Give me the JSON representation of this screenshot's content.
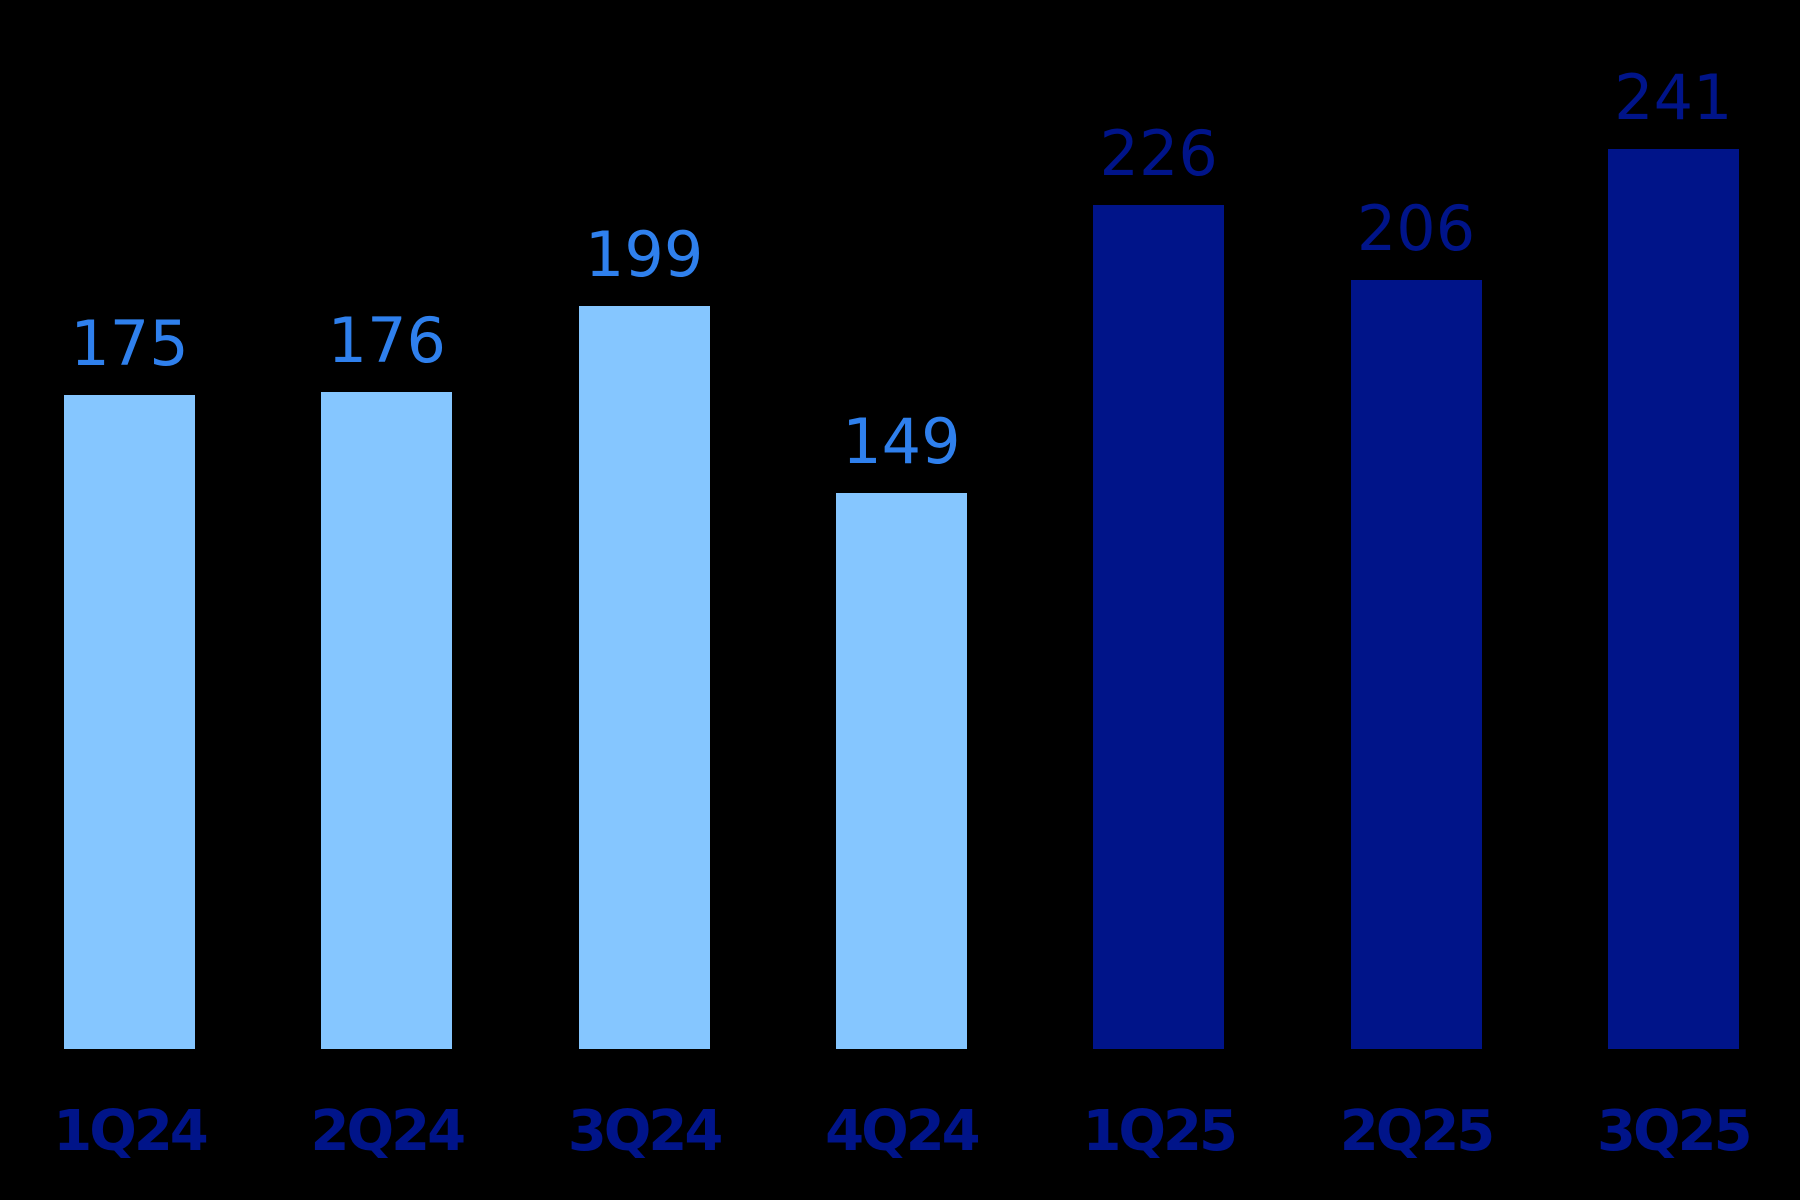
{
  "chart_data": {
    "type": "bar",
    "title": "",
    "xlabel": "",
    "ylabel": "",
    "categories": [
      "1Q24",
      "2Q24",
      "3Q24",
      "4Q24",
      "1Q25",
      "2Q25",
      "3Q25"
    ],
    "values": [
      175,
      176,
      199,
      149,
      226,
      206,
      241
    ],
    "ylim": [
      0,
      241
    ],
    "grid": false,
    "legend": null,
    "bar_colors": [
      "#85C6FF",
      "#85C6FF",
      "#85C6FF",
      "#85C6FF",
      "#001489",
      "#001489",
      "#001489"
    ],
    "label_colors": [
      "#2F80ED",
      "#2F80ED",
      "#2F80ED",
      "#2F80ED",
      "#001489",
      "#001489",
      "#001489"
    ]
  },
  "colors": {
    "background": "#000000",
    "bar_2024": "#85C6FF",
    "bar_2025": "#001489",
    "label_2024": "#2F80ED",
    "label_2025": "#001489",
    "category_label": "#001489"
  }
}
